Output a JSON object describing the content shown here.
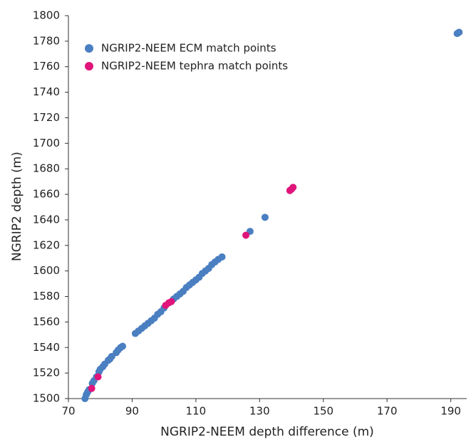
{
  "chart_data": {
    "type": "scatter",
    "x_label": "NGRIP2-NEEM depth difference (m)",
    "y_label": "NGRIP2 depth (m)",
    "xlim": [
      70,
      195
    ],
    "xticks": [
      70,
      90,
      110,
      130,
      150,
      170,
      190
    ],
    "ylim": [
      1500,
      1800
    ],
    "yticks": [
      1500,
      1520,
      1540,
      1560,
      1580,
      1600,
      1620,
      1640,
      1660,
      1680,
      1700,
      1720,
      1740,
      1760,
      1780,
      1800
    ],
    "legend": "upper-left",
    "series": [
      {
        "name": "NGRIP2-NEEM ECM match points",
        "color": "#4a7fc1",
        "x": [
          75.2,
          75.6,
          76,
          76.5,
          77.5,
          78,
          78.8,
          79.6,
          80,
          80.8,
          81.4,
          82.5,
          83,
          83.6,
          85,
          85.6,
          86.4,
          87,
          91,
          92,
          93,
          94,
          95,
          96,
          97,
          98,
          99,
          100,
          103,
          104,
          105,
          106,
          107,
          108,
          109,
          110,
          111,
          112,
          113,
          114,
          115,
          116,
          117,
          118.2,
          127,
          131.7,
          192,
          192.6
        ],
        "values": [
          1500,
          1503,
          1505,
          1507,
          1512,
          1514,
          1517,
          1521,
          1523,
          1525,
          1527,
          1530,
          1531,
          1533,
          1536,
          1538,
          1540,
          1541,
          1551,
          1553,
          1555,
          1557,
          1559,
          1561,
          1563,
          1566,
          1568,
          1571,
          1578,
          1580,
          1582,
          1584,
          1587,
          1589,
          1591,
          1593,
          1595,
          1598,
          1600,
          1602,
          1605,
          1607,
          1609,
          1611,
          1631,
          1642,
          1786,
          1787
        ]
      },
      {
        "name": "NGRIP2-NEEM tephra match points",
        "color": "#e0147a",
        "x": [
          77.3,
          79.3,
          100.5,
          101.5,
          102.3,
          125.7,
          139.5,
          140,
          140.5
        ],
        "values": [
          1508,
          1517,
          1573,
          1575,
          1576,
          1628,
          1663,
          1664,
          1665.5
        ]
      }
    ]
  }
}
